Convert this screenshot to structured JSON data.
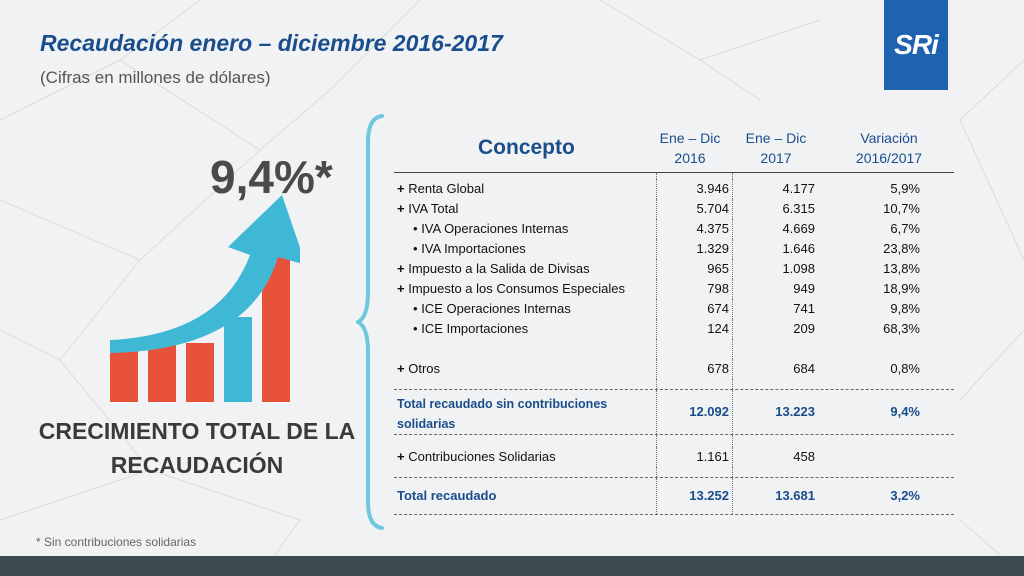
{
  "header": {
    "title": "Recaudación enero – diciembre 2016-2017",
    "subtitle": "(Cifras en millones de dólares)",
    "logo_text": "SRi"
  },
  "highlight": {
    "value": "9,4%*",
    "label_line1": "CRECIMIENTO TOTAL DE LA",
    "label_line2": "RECAUDACIÓN"
  },
  "footnote": "* Sin contribuciones solidarias",
  "colors": {
    "title": "#1a4d8c",
    "logo_bg": "#1f62b0",
    "bar_red": "#e9523a",
    "bar_blue": "#3fb8d6",
    "arrow": "#3fb8d6"
  },
  "icons": {
    "growth": "growth-chart-arrow-icon",
    "brace": "left-brace-icon"
  },
  "table": {
    "headers": {
      "concept": "Concepto",
      "col2016_l1": "Ene – Dic",
      "col2016_l2": "2016",
      "col2017_l1": "Ene – Dic",
      "col2017_l2": "2017",
      "var_l1": "Variación",
      "var_l2": "2016/2017"
    },
    "rows": [
      {
        "prefix": "+",
        "label": "Renta Global",
        "v2016": "3.946",
        "v2017": "4.177",
        "var": "5,9%"
      },
      {
        "prefix": "+",
        "label": "IVA Total",
        "v2016": "5.704",
        "v2017": "6.315",
        "var": "10,7%"
      },
      {
        "prefix": "•",
        "label": "IVA Operaciones Internas",
        "v2016": "4.375",
        "v2017": "4.669",
        "var": "6,7%"
      },
      {
        "prefix": "•",
        "label": "IVA Importaciones",
        "v2016": "1.329",
        "v2017": "1.646",
        "var": "23,8%"
      },
      {
        "prefix": "+",
        "label": "Impuesto a la Salida de Divisas",
        "v2016": "965",
        "v2017": "1.098",
        "var": "13,8%"
      },
      {
        "prefix": "+",
        "label": "Impuesto a los Consumos Especiales",
        "v2016": "798",
        "v2017": "949",
        "var": "18,9%"
      },
      {
        "prefix": "•",
        "label": "ICE Operaciones Internas",
        "v2016": "674",
        "v2017": "741",
        "var": "9,8%"
      },
      {
        "prefix": "•",
        "label": "ICE Importaciones",
        "v2016": "124",
        "v2017": "209",
        "var": "68,3%"
      },
      {
        "prefix": "+",
        "label": "Otros",
        "v2016": "678",
        "v2017": "684",
        "var": "0,8%"
      }
    ],
    "subtotal": {
      "label_l1": "Total recaudado sin contribuciones",
      "label_l2": "solidarias",
      "v2016": "12.092",
      "v2017": "13.223",
      "var": "9,4%"
    },
    "contrib": {
      "prefix": "+",
      "label": "Contribuciones Solidarias",
      "v2016": "1.161",
      "v2017": "458",
      "var": ""
    },
    "total": {
      "label": "Total recaudado",
      "v2016": "13.252",
      "v2017": "13.681",
      "var": "3,2%"
    }
  }
}
